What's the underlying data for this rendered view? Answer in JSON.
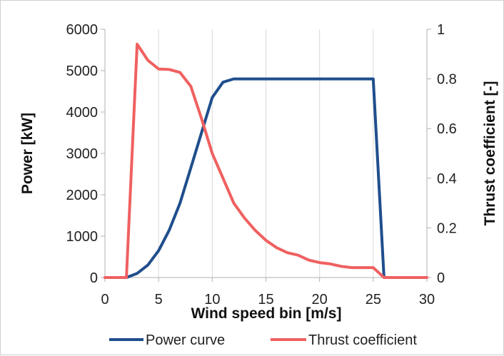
{
  "chart_data": {
    "type": "line",
    "title": "",
    "xlabel": "Wind speed bin [m/s]",
    "ylabel": "Power [kW]",
    "y2label": "Thrust coefficient [-]",
    "xlim": [
      0,
      30
    ],
    "ylim": [
      0,
      6000
    ],
    "y2lim": [
      0,
      1
    ],
    "xticks": [
      "0",
      "5",
      "10",
      "15",
      "20",
      "25",
      "30"
    ],
    "yticks": [
      "0",
      "1000",
      "2000",
      "3000",
      "4000",
      "5000",
      "6000"
    ],
    "y2ticks": [
      "0",
      "0.2",
      "0.4",
      "0.6",
      "0.8",
      "1"
    ],
    "grid": "vertical",
    "legend_position": "bottom",
    "series": [
      {
        "name": "Power curve",
        "axis": "left",
        "color": "#1f4e8c",
        "x": [
          2,
          3,
          4,
          5,
          6,
          7,
          8,
          9,
          10,
          11,
          12,
          13,
          14,
          15,
          16,
          17,
          18,
          19,
          20,
          21,
          22,
          23,
          24,
          25,
          26
        ],
        "values": [
          0,
          100,
          300,
          650,
          1150,
          1800,
          2650,
          3500,
          4350,
          4720,
          4800,
          4800,
          4800,
          4800,
          4800,
          4800,
          4800,
          4800,
          4800,
          4800,
          4800,
          4800,
          4800,
          4800,
          0
        ]
      },
      {
        "name": "Thrust coefficient",
        "axis": "right",
        "color": "#f06060",
        "x": [
          0,
          1,
          2,
          3,
          4,
          5,
          6,
          7,
          8,
          9,
          10,
          11,
          12,
          13,
          14,
          15,
          16,
          17,
          18,
          19,
          20,
          21,
          22,
          23,
          24,
          25,
          26,
          27,
          28,
          29,
          30
        ],
        "values": [
          0,
          0,
          0,
          0.94,
          0.875,
          0.84,
          0.838,
          0.826,
          0.77,
          0.64,
          0.5,
          0.4,
          0.3,
          0.24,
          0.19,
          0.15,
          0.12,
          0.1,
          0.09,
          0.07,
          0.06,
          0.055,
          0.045,
          0.04,
          0.04,
          0.04,
          0,
          0,
          0,
          0,
          0
        ]
      }
    ]
  }
}
